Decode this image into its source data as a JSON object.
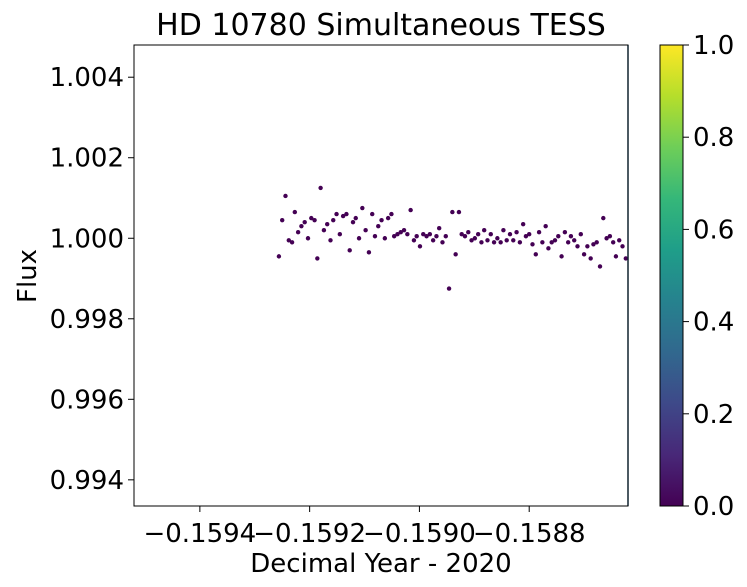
{
  "chart_data": {
    "type": "scatter",
    "title": "HD 10780 Simultaneous TESS",
    "xlabel": "Decimal Year - 2020",
    "ylabel": "Flux",
    "xlim": [
      -0.15952,
      -0.15862
    ],
    "ylim": [
      0.99335,
      1.0048
    ],
    "x_ticks": [
      -0.1594,
      -0.1592,
      -0.159,
      -0.1588
    ],
    "x_tick_labels": [
      "−0.1594",
      "−0.1592",
      "−0.1590",
      "−0.1588"
    ],
    "y_ticks": [
      0.994,
      0.996,
      0.998,
      1.0,
      1.002,
      1.004
    ],
    "y_tick_labels": [
      "0.994",
      "0.996",
      "0.998",
      "1.000",
      "1.002",
      "1.004"
    ],
    "grid": false,
    "marker_color": "#440154",
    "colorbar": {
      "min": 0.0,
      "max": 1.0,
      "ticks": [
        0.0,
        0.2,
        0.4,
        0.6,
        0.8,
        1.0
      ],
      "tick_labels": [
        "0.0",
        "0.2",
        "0.4",
        "0.6",
        "0.8",
        "1.0"
      ],
      "colormap": "viridis",
      "stops": [
        "#440154",
        "#482878",
        "#3e4989",
        "#31688e",
        "#26828e",
        "#1f9e89",
        "#35b779",
        "#6ece58",
        "#b5de2b",
        "#fde725"
      ]
    },
    "points": [
      [
        -0.159256,
        0.99955
      ],
      [
        -0.15925,
        1.00045
      ],
      [
        -0.159244,
        1.00105
      ],
      [
        -0.159238,
        0.99995
      ],
      [
        -0.159232,
        0.9999
      ],
      [
        -0.159227,
        1.00065
      ],
      [
        -0.159221,
        1.00015
      ],
      [
        -0.159215,
        1.0003
      ],
      [
        -0.159209,
        1.0004
      ],
      [
        -0.159203,
        1.0
      ],
      [
        -0.159197,
        1.0005
      ],
      [
        -0.159191,
        1.00045
      ],
      [
        -0.159186,
        0.9995
      ],
      [
        -0.15918,
        1.00125
      ],
      [
        -0.159174,
        1.0002
      ],
      [
        -0.159168,
        1.00035
      ],
      [
        -0.159162,
        0.99995
      ],
      [
        -0.159157,
        1.00045
      ],
      [
        -0.159151,
        1.0006
      ],
      [
        -0.159145,
        1.0001
      ],
      [
        -0.159139,
        1.00055
      ],
      [
        -0.159133,
        1.0006
      ],
      [
        -0.159127,
        0.9997
      ],
      [
        -0.159121,
        1.0004
      ],
      [
        -0.159116,
        1.0005
      ],
      [
        -0.15911,
        1.0
      ],
      [
        -0.159104,
        1.00075
      ],
      [
        -0.159098,
        1.0002
      ],
      [
        -0.159092,
        0.99965
      ],
      [
        -0.159086,
        1.0006
      ],
      [
        -0.159081,
        1.00005
      ],
      [
        -0.159075,
        1.0003
      ],
      [
        -0.159069,
        1.00045
      ],
      [
        -0.159063,
        1.0
      ],
      [
        -0.159057,
        1.0005
      ],
      [
        -0.159051,
        1.0006
      ],
      [
        -0.159046,
        1.00005
      ],
      [
        -0.15904,
        1.0001
      ],
      [
        -0.159034,
        1.00015
      ],
      [
        -0.159028,
        1.0002
      ],
      [
        -0.159022,
        1.0001
      ],
      [
        -0.159016,
        1.0007
      ],
      [
        -0.15901,
        0.99995
      ],
      [
        -0.159005,
        1.00005
      ],
      [
        -0.158999,
        0.9998
      ],
      [
        -0.158993,
        1.0001
      ],
      [
        -0.158987,
        1.00005
      ],
      [
        -0.158981,
        1.0001
      ],
      [
        -0.158975,
        0.99995
      ],
      [
        -0.158969,
        1.00005
      ],
      [
        -0.158964,
        1.00025
      ],
      [
        -0.158958,
        0.9999
      ],
      [
        -0.158952,
        1.00005
      ],
      [
        -0.158946,
        0.99875
      ],
      [
        -0.15894,
        1.00065
      ],
      [
        -0.158934,
        0.9996
      ],
      [
        -0.158928,
        1.00065
      ],
      [
        -0.158923,
        1.0001
      ],
      [
        -0.158917,
        1.00005
      ],
      [
        -0.158911,
        1.00015
      ],
      [
        -0.158905,
        0.99995
      ],
      [
        -0.158899,
        1.0
      ],
      [
        -0.158893,
        1.0001
      ],
      [
        -0.158887,
        0.9999
      ],
      [
        -0.158882,
        1.0002
      ],
      [
        -0.158876,
        0.99995
      ],
      [
        -0.15887,
        1.0001
      ],
      [
        -0.158864,
        0.9999
      ],
      [
        -0.158858,
        1.0
      ],
      [
        -0.158852,
        0.9999
      ],
      [
        -0.158847,
        1.0002
      ],
      [
        -0.158841,
        0.99995
      ],
      [
        -0.158835,
        1.0001
      ],
      [
        -0.158829,
        0.99995
      ],
      [
        -0.158823,
        1.00015
      ],
      [
        -0.158817,
        0.9999
      ],
      [
        -0.158811,
        1.00035
      ],
      [
        -0.158806,
        1.00005
      ],
      [
        -0.1588,
        1.0001
      ],
      [
        -0.158794,
        0.99985
      ],
      [
        -0.158788,
        0.9996
      ],
      [
        -0.158782,
        1.00015
      ],
      [
        -0.158776,
        0.9999
      ],
      [
        -0.15877,
        1.0003
      ],
      [
        -0.158765,
        0.99975
      ],
      [
        -0.158759,
        0.9999
      ],
      [
        -0.158753,
        0.99995
      ],
      [
        -0.158747,
        1.00005
      ],
      [
        -0.158741,
        0.99955
      ],
      [
        -0.158735,
        1.00015
      ],
      [
        -0.158729,
        0.9999
      ],
      [
        -0.158724,
        1.00005
      ],
      [
        -0.158718,
        0.99995
      ],
      [
        -0.158712,
        0.9998
      ],
      [
        -0.158706,
        1.0001
      ],
      [
        -0.1587,
        0.9996
      ],
      [
        -0.158694,
        0.9998
      ],
      [
        -0.158688,
        0.9995
      ],
      [
        -0.158683,
        0.99985
      ],
      [
        -0.158677,
        0.9999
      ],
      [
        -0.158671,
        0.9993
      ],
      [
        -0.158665,
        1.0005
      ],
      [
        -0.158659,
        1.0
      ],
      [
        -0.158653,
        1.00005
      ],
      [
        -0.158647,
        0.9999
      ],
      [
        -0.158642,
        0.99955
      ],
      [
        -0.158636,
        0.99995
      ],
      [
        -0.15863,
        0.9998
      ],
      [
        -0.158624,
        0.9995
      ],
      [
        -0.158618,
        0.9998
      ],
      [
        -0.158612,
        0.99975
      ],
      [
        -0.158607,
        0.9995
      ],
      [
        -0.158601,
        0.99975
      ],
      [
        -0.158595,
        0.9995
      ],
      [
        -0.158589,
        0.9997
      ]
    ]
  }
}
